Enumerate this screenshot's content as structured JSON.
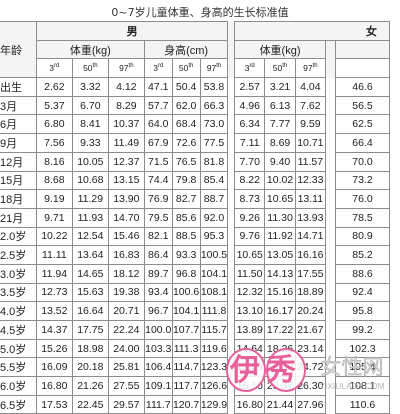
{
  "title": "0~7岁儿童体重、身高的生长标准值",
  "headers": {
    "age": "年龄",
    "male": "男",
    "female": "女",
    "weight": "体重(kg)",
    "height": "身高(cm)",
    "percentiles": [
      [
        "3",
        "rd"
      ],
      [
        "50",
        "th"
      ],
      [
        "97",
        "th"
      ]
    ]
  },
  "rows": [
    {
      "age": "出生",
      "m_w": [
        "2.62",
        "3.32",
        "4.12"
      ],
      "m_h": [
        "47.1",
        "50.4",
        "53.8"
      ],
      "f_w": [
        "2.57",
        "3.21",
        "4.04"
      ],
      "f_h": "46.6"
    },
    {
      "age": "3月",
      "m_w": [
        "5.37",
        "6.70",
        "8.29"
      ],
      "m_h": [
        "57.7",
        "62.0",
        "66.3"
      ],
      "f_w": [
        "4.96",
        "6.13",
        "7.62"
      ],
      "f_h": "56.5"
    },
    {
      "age": "6月",
      "m_w": [
        "6.80",
        "8.41",
        "10.37"
      ],
      "m_h": [
        "64.0",
        "68.4",
        "73.0"
      ],
      "f_w": [
        "6.34",
        "7.77",
        "9.59"
      ],
      "f_h": "62.5"
    },
    {
      "age": "9月",
      "m_w": [
        "7.56",
        "9.33",
        "11.49"
      ],
      "m_h": [
        "67.9",
        "72.6",
        "77.5"
      ],
      "f_w": [
        "7.11",
        "8.69",
        "10.71"
      ],
      "f_h": "66.4"
    },
    {
      "age": "12月",
      "m_w": [
        "8.16",
        "10.05",
        "12.37"
      ],
      "m_h": [
        "71.5",
        "76.5",
        "81.8"
      ],
      "f_w": [
        "7.70",
        "9.40",
        "11.57"
      ],
      "f_h": "70.0"
    },
    {
      "age": "15月",
      "m_w": [
        "8.68",
        "10.68",
        "13.15"
      ],
      "m_h": [
        "74.4",
        "79.8",
        "85.4"
      ],
      "f_w": [
        "8.22",
        "10.02",
        "12.33"
      ],
      "f_h": "73.2"
    },
    {
      "age": "18月",
      "m_w": [
        "9.19",
        "11.29",
        "13.90"
      ],
      "m_h": [
        "76.9",
        "82.7",
        "88.7"
      ],
      "f_w": [
        "8.73",
        "10.65",
        "13.11"
      ],
      "f_h": "76.0"
    },
    {
      "age": "21月",
      "m_w": [
        "9.71",
        "11.93",
        "14.70"
      ],
      "m_h": [
        "79.5",
        "85.6",
        "92.0"
      ],
      "f_w": [
        "9.26",
        "11.30",
        "13.93"
      ],
      "f_h": "78.5"
    },
    {
      "age": "2.0岁",
      "m_w": [
        "10.22",
        "12.54",
        "15.46"
      ],
      "m_h": [
        "82.1",
        "88.5",
        "95.3"
      ],
      "f_w": [
        "9.76",
        "11.92",
        "14.71"
      ],
      "f_h": "80.9"
    },
    {
      "age": "2.5岁",
      "m_w": [
        "11.11",
        "13.64",
        "16.83"
      ],
      "m_h": [
        "86.4",
        "93.3",
        "100.5"
      ],
      "f_w": [
        "10.65",
        "13.05",
        "16.16"
      ],
      "f_h": "85.2"
    },
    {
      "age": "3.0岁",
      "m_w": [
        "11.94",
        "14.65",
        "18.12"
      ],
      "m_h": [
        "89.7",
        "96.8",
        "104.1"
      ],
      "f_w": [
        "11.50",
        "14.13",
        "17.55"
      ],
      "f_h": "88.6"
    },
    {
      "age": "3.5岁",
      "m_w": [
        "12.73",
        "15.63",
        "19.38"
      ],
      "m_h": [
        "93.4",
        "100.6",
        "108.1"
      ],
      "f_w": [
        "12.32",
        "15.16",
        "18.89"
      ],
      "f_h": "92.4"
    },
    {
      "age": "4.0岁",
      "m_w": [
        "13.52",
        "16.64",
        "20.71"
      ],
      "m_h": [
        "96.7",
        "104.1",
        "111.8"
      ],
      "f_w": [
        "13.10",
        "16.17",
        "20.24"
      ],
      "f_h": "95.8"
    },
    {
      "age": "4.5岁",
      "m_w": [
        "14.37",
        "17.75",
        "22.24"
      ],
      "m_h": [
        "100.0",
        "107.7",
        "115.7"
      ],
      "f_w": [
        "13.89",
        "17.22",
        "21.67"
      ],
      "f_h": "99.2"
    },
    {
      "age": "5.0岁",
      "m_w": [
        "15.26",
        "18.98",
        "24.00"
      ],
      "m_h": [
        "103.3",
        "111.3",
        "119.6"
      ],
      "f_w": [
        "14.64",
        "18.26",
        "23.14"
      ],
      "f_h": "102.3"
    },
    {
      "age": "5.5岁",
      "m_w": [
        "16.09",
        "20.18",
        "25.81"
      ],
      "m_h": [
        "106.4",
        "114.7",
        "123.3"
      ],
      "f_w": [
        "15.39",
        "19.33",
        "24.72"
      ],
      "f_h": "105.4"
    },
    {
      "age": "6.0岁",
      "m_w": [
        "16.80",
        "21.26",
        "27.55"
      ],
      "m_h": [
        "109.1",
        "117.7",
        "126.6"
      ],
      "f_w": [
        "16.10",
        "20.37",
        "26.30"
      ],
      "f_h": "108.1"
    },
    {
      "age": "6.5岁",
      "m_w": [
        "17.53",
        "22.45",
        "29.57"
      ],
      "m_h": [
        "111.7",
        "120.7",
        "129.9"
      ],
      "f_w": [
        "16.80",
        "21.44",
        "27.96"
      ],
      "f_h": "110.6"
    }
  ],
  "watermark": {
    "logo": "伊秀",
    "site": "女性网",
    "url": "YIXIULADY.COM",
    "colors": {
      "logo": "#e8609a",
      "site": "#d7d7d7"
    }
  }
}
